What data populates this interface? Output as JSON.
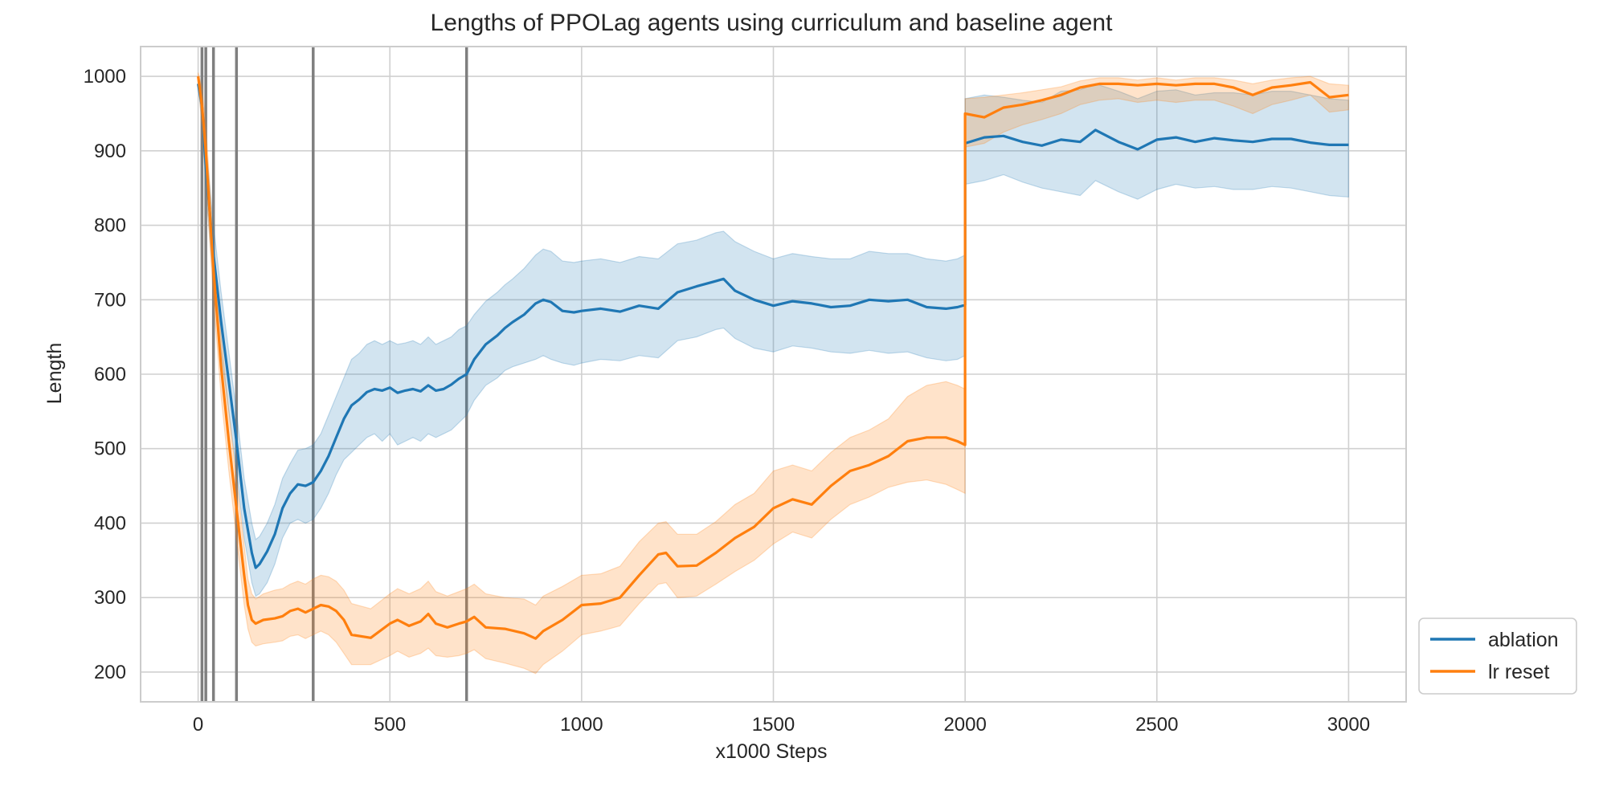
{
  "chart_data": {
    "type": "line",
    "title": "Lengths of PPOLag agents using curriculum and baseline agent",
    "xlabel": "x1000 Steps",
    "ylabel": "Length",
    "xlim": [
      -150,
      3150
    ],
    "ylim": [
      160,
      1040
    ],
    "xticks": [
      0,
      500,
      1000,
      1500,
      2000,
      2500,
      3000
    ],
    "xtick_labels": [
      "0",
      "500",
      "1000",
      "1500",
      "2000",
      "2500",
      "3000"
    ],
    "yticks": [
      200,
      300,
      400,
      500,
      600,
      700,
      800,
      900,
      1000
    ],
    "ytick_labels": [
      "200",
      "300",
      "400",
      "500",
      "600",
      "700",
      "800",
      "900",
      "1000"
    ],
    "grid": true,
    "legend_position": "outside-bottom-right",
    "curriculum_boundaries": [
      10,
      20,
      40,
      100,
      300,
      700
    ],
    "series": [
      {
        "name": "ablation",
        "color": "#1f77b4",
        "x": [
          0,
          10,
          20,
          40,
          60,
          80,
          100,
          120,
          140,
          150,
          160,
          180,
          200,
          220,
          240,
          260,
          280,
          300,
          320,
          340,
          360,
          380,
          400,
          420,
          440,
          460,
          480,
          500,
          520,
          540,
          560,
          580,
          600,
          620,
          640,
          660,
          680,
          700,
          720,
          750,
          780,
          800,
          820,
          850,
          880,
          900,
          920,
          950,
          980,
          1000,
          1050,
          1100,
          1150,
          1200,
          1250,
          1300,
          1350,
          1370,
          1400,
          1450,
          1500,
          1550,
          1600,
          1650,
          1700,
          1750,
          1800,
          1850,
          1900,
          1950,
          1980,
          2000,
          2000,
          2050,
          2100,
          2150,
          2200,
          2250,
          2300,
          2340,
          2400,
          2450,
          2500,
          2550,
          2600,
          2650,
          2700,
          2750,
          2800,
          2850,
          2900,
          2950,
          3000
        ],
        "y": [
          990,
          960,
          880,
          760,
          670,
          590,
          510,
          420,
          360,
          340,
          345,
          362,
          385,
          420,
          440,
          452,
          450,
          455,
          470,
          490,
          515,
          540,
          558,
          566,
          576,
          580,
          578,
          582,
          575,
          578,
          580,
          577,
          585,
          578,
          580,
          586,
          594,
          600,
          620,
          640,
          652,
          662,
          670,
          680,
          695,
          700,
          697,
          685,
          683,
          685,
          688,
          684,
          692,
          688,
          710,
          718,
          725,
          728,
          712,
          700,
          692,
          698,
          695,
          690,
          692,
          700,
          698,
          700,
          690,
          688,
          690,
          693,
          910,
          918,
          920,
          912,
          907,
          915,
          912,
          928,
          912,
          902,
          915,
          918,
          912,
          917,
          914,
          912,
          916,
          916,
          911,
          908,
          908
        ],
        "lower": [
          985,
          940,
          850,
          720,
          630,
          550,
          470,
          380,
          320,
          302,
          305,
          320,
          345,
          380,
          400,
          405,
          400,
          405,
          420,
          440,
          465,
          485,
          495,
          505,
          515,
          520,
          510,
          520,
          505,
          510,
          515,
          510,
          520,
          515,
          520,
          525,
          535,
          545,
          565,
          585,
          595,
          605,
          610,
          615,
          620,
          625,
          620,
          615,
          612,
          615,
          620,
          618,
          625,
          622,
          645,
          650,
          660,
          662,
          648,
          635,
          630,
          638,
          635,
          630,
          628,
          632,
          628,
          630,
          622,
          618,
          620,
          625,
          855,
          860,
          868,
          858,
          850,
          845,
          840,
          860,
          845,
          835,
          848,
          855,
          850,
          852,
          848,
          848,
          852,
          850,
          845,
          840,
          838
        ],
        "upper": [
          995,
          978,
          910,
          800,
          710,
          630,
          550,
          460,
          400,
          378,
          382,
          400,
          425,
          460,
          480,
          498,
          500,
          505,
          520,
          545,
          570,
          595,
          620,
          628,
          640,
          645,
          640,
          645,
          640,
          642,
          645,
          640,
          650,
          640,
          645,
          650,
          660,
          665,
          680,
          698,
          710,
          720,
          728,
          742,
          760,
          768,
          765,
          752,
          750,
          752,
          755,
          750,
          758,
          755,
          775,
          780,
          790,
          792,
          778,
          765,
          755,
          762,
          758,
          755,
          755,
          765,
          762,
          762,
          755,
          752,
          755,
          760,
          970,
          975,
          972,
          968,
          965,
          980,
          982,
          990,
          980,
          970,
          980,
          982,
          975,
          978,
          978,
          975,
          980,
          980,
          975,
          970,
          968
        ]
      },
      {
        "name": "lr reset",
        "color": "#ff7f0e",
        "x": [
          0,
          10,
          20,
          40,
          60,
          80,
          100,
          120,
          130,
          140,
          150,
          170,
          200,
          220,
          240,
          260,
          280,
          300,
          320,
          340,
          360,
          380,
          400,
          450,
          500,
          520,
          550,
          580,
          600,
          620,
          650,
          680,
          700,
          720,
          750,
          800,
          850,
          880,
          900,
          950,
          1000,
          1050,
          1100,
          1150,
          1200,
          1220,
          1250,
          1300,
          1350,
          1400,
          1450,
          1500,
          1550,
          1600,
          1650,
          1700,
          1750,
          1800,
          1850,
          1900,
          1950,
          1980,
          2000,
          2000,
          2050,
          2100,
          2150,
          2200,
          2250,
          2300,
          2350,
          2400,
          2450,
          2500,
          2550,
          2600,
          2650,
          2700,
          2750,
          2800,
          2850,
          2900,
          2950,
          3000
        ],
        "y": [
          1000,
          960,
          900,
          740,
          610,
          510,
          420,
          330,
          290,
          270,
          265,
          270,
          272,
          275,
          282,
          285,
          280,
          285,
          290,
          288,
          282,
          270,
          250,
          246,
          265,
          270,
          262,
          268,
          278,
          265,
          260,
          265,
          268,
          274,
          260,
          258,
          252,
          245,
          255,
          270,
          290,
          292,
          300,
          330,
          358,
          360,
          342,
          343,
          360,
          380,
          395,
          420,
          432,
          425,
          450,
          470,
          478,
          490,
          510,
          515,
          515,
          510,
          505,
          950,
          945,
          958,
          962,
          968,
          975,
          985,
          990,
          990,
          988,
          990,
          988,
          990,
          990,
          985,
          975,
          985,
          988,
          992,
          972,
          975
        ],
        "lower": [
          995,
          930,
          860,
          700,
          570,
          470,
          380,
          290,
          258,
          240,
          235,
          238,
          240,
          242,
          248,
          250,
          245,
          250,
          255,
          250,
          240,
          225,
          210,
          210,
          222,
          228,
          220,
          225,
          232,
          222,
          220,
          222,
          225,
          230,
          218,
          212,
          205,
          198,
          210,
          228,
          250,
          255,
          262,
          292,
          318,
          320,
          300,
          302,
          318,
          335,
          350,
          372,
          388,
          380,
          405,
          425,
          435,
          448,
          455,
          458,
          452,
          445,
          440,
          905,
          910,
          925,
          935,
          942,
          950,
          962,
          968,
          970,
          965,
          968,
          965,
          968,
          968,
          960,
          950,
          962,
          968,
          975,
          952,
          955
        ],
        "upper": [
          1005,
          985,
          935,
          780,
          650,
          550,
          460,
          370,
          325,
          305,
          298,
          305,
          310,
          312,
          318,
          322,
          318,
          325,
          330,
          328,
          322,
          310,
          292,
          285,
          305,
          312,
          305,
          312,
          322,
          308,
          302,
          308,
          312,
          318,
          305,
          300,
          298,
          290,
          302,
          315,
          330,
          332,
          342,
          375,
          400,
          402,
          385,
          385,
          402,
          425,
          440,
          470,
          478,
          470,
          495,
          515,
          525,
          540,
          570,
          585,
          590,
          585,
          580,
          970,
          972,
          975,
          978,
          982,
          986,
          994,
          998,
          998,
          995,
          998,
          995,
          998,
          998,
          995,
          990,
          995,
          998,
          1000,
          990,
          988
        ]
      }
    ]
  }
}
